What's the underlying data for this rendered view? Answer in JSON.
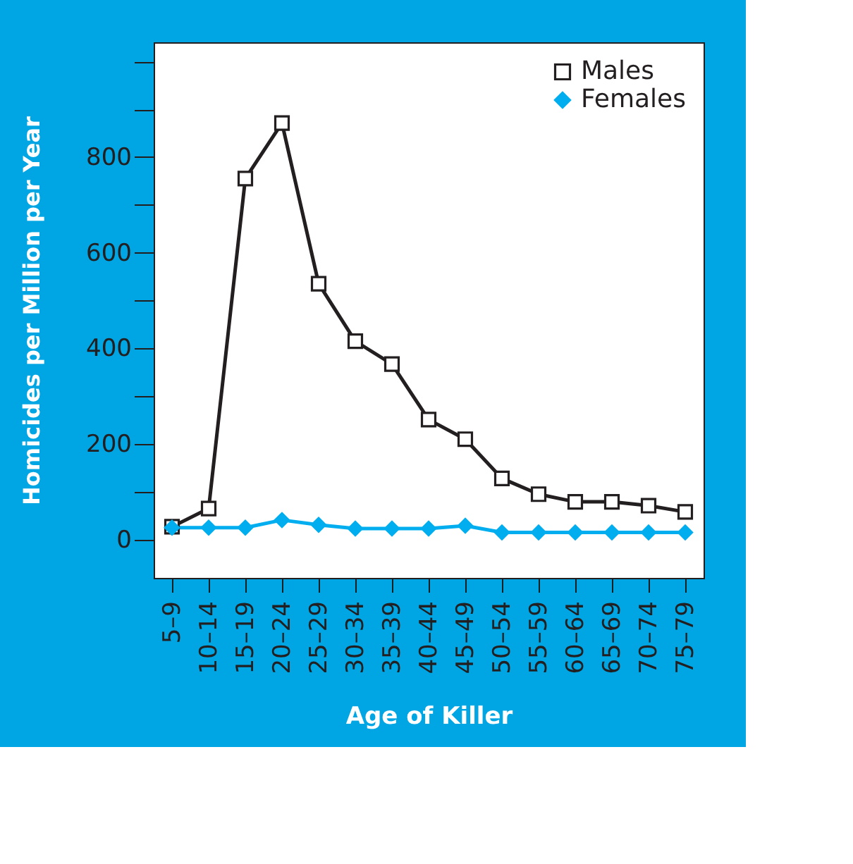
{
  "chart_data": {
    "type": "line",
    "xlabel": "Age of Killer",
    "ylabel": "Homicides per Million per Year",
    "categories": [
      "5–9",
      "10–14",
      "15–19",
      "20–24",
      "25–29",
      "30–34",
      "35–39",
      "40–44",
      "45–49",
      "50–54",
      "55–59",
      "60–64",
      "65–69",
      "70–74",
      "75–79"
    ],
    "series": [
      {
        "name": "Males",
        "color": "#231f20",
        "marker": "square",
        "values": [
          27,
          65,
          755,
          871,
          535,
          415,
          367,
          251,
          210,
          128,
          95,
          79,
          79,
          71,
          58
        ]
      },
      {
        "name": "Females",
        "color": "#00aeef",
        "marker": "diamond",
        "values": [
          25,
          25,
          25,
          41,
          31,
          23,
          23,
          23,
          29,
          15,
          15,
          15,
          15,
          15,
          15
        ]
      }
    ],
    "ylim": [
      -80,
      1040
    ],
    "yticks": [
      0,
      {
        "value": 100,
        "label": null
      },
      200,
      {
        "value": 300,
        "label": null
      },
      400,
      {
        "value": 500,
        "label": null
      },
      600,
      {
        "value": 700,
        "label": null
      },
      800,
      {
        "value": 900,
        "label": null
      },
      {
        "value": 1000,
        "label": null
      }
    ],
    "legend": "top right",
    "grid": false,
    "line_style": "solid"
  }
}
